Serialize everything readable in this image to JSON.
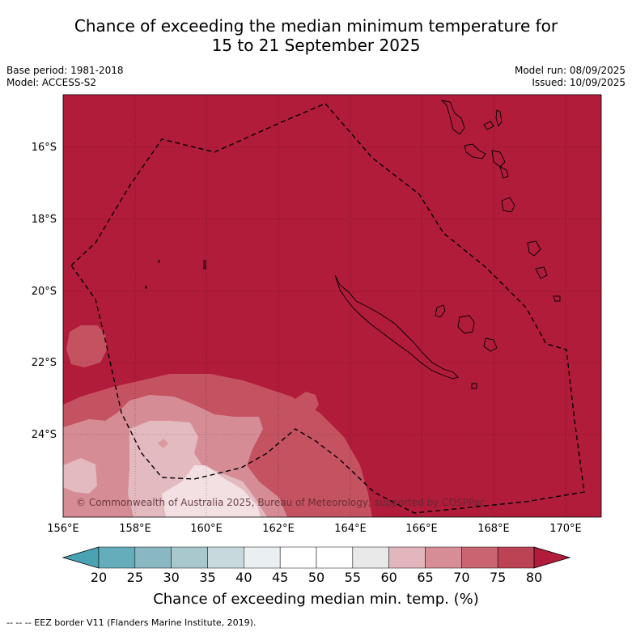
{
  "title_line1": "Chance of exceeding the median minimum temperature for",
  "title_line2": "15 to 21 September 2025",
  "base_period": "Base period: 1981-2018",
  "model": "Model: ACCESS-S2",
  "model_run": "Model run: 08/09/2025",
  "issued": "Issued: 10/09/2025",
  "copyright": "© Commonwealth of Australia 2025, Bureau of Meteorology; supported by COSPPac",
  "lat_labels": [
    "16°S",
    "18°S",
    "20°S",
    "22°S",
    "24°S"
  ],
  "lon_labels": [
    "156°E",
    "158°E",
    "160°E",
    "162°E",
    "164°E",
    "166°E",
    "168°E",
    "170°E"
  ],
  "colorbar": {
    "title": "Chance of exceeding median min. temp. (%)",
    "ticks": [
      "20",
      "25",
      "30",
      "35",
      "40",
      "45",
      "50",
      "55",
      "60",
      "65",
      "70",
      "75",
      "80"
    ],
    "colors": [
      "#65adba",
      "#8ab8c2",
      "#a9c8cd",
      "#c8d9dd",
      "#eaf0f1",
      "#ffffff",
      "#ffffff",
      "#e9e9e9",
      "#e2b6bc",
      "#d68d95",
      "#c96470",
      "#bc4354"
    ],
    "under_color": "#4aa3b3",
    "over_color": "#b01c3a"
  },
  "map_colors": {
    "background": "#b01c3a",
    "band_70_75": "#c55261",
    "band_65_70": "#d58c94",
    "band_60_65": "#e3bac0"
  },
  "footer": "--  --  -- EEZ border V11 (Flanders Marine Institute, 2019)."
}
